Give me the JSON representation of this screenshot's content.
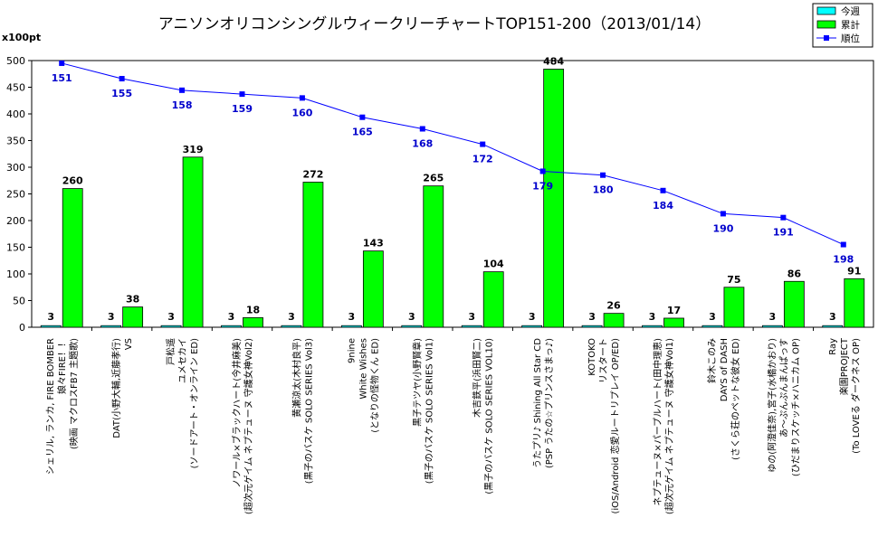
{
  "chart_data": {
    "type": "bar",
    "title": "アニソンオリコンシングルウィークリーチャートTOP151-200（2013/01/14）",
    "ylabel": "x100pt",
    "ylim": [
      0,
      500
    ],
    "yticks": [
      0,
      50,
      100,
      150,
      200,
      250,
      300,
      350,
      400,
      450,
      500
    ],
    "grid": false,
    "legend_position": "top-right",
    "categories": [
      [
        "シェリル, ランカ, FIRE BOMBER",
        "娘々FIRE！！",
        "(映画 マクロスFB7 主題歌)"
      ],
      [
        "DAT(小野大輔,近藤孝行)",
        "VS"
      ],
      [
        "戸松遥",
        "ユメセカイ",
        "(ソードアート・オンライン ED)"
      ],
      [
        "ノワール×ブラックハート(今井麻美)",
        "(超次元ゲイム ネプテューヌ 守護女神Vol2)"
      ],
      [
        "黄瀬涼太(木村良平)",
        "(黒子のバスケ SOLO SERIES Vol3)"
      ],
      [
        "9nine",
        "White Wishes",
        "(となりの怪物くん ED)"
      ],
      [
        "黒子テツヤ(小野賢章)",
        "(黒子のバスケ SOLO SERIES Vol1)"
      ],
      [
        "木吉鉄平(浜田賢二)",
        "(黒子のバスケ SOLO SERIES VOL10)"
      ],
      [
        "うたプリ♪ Shining All Star CD",
        "(PSP うたの☆プリンスさまっ♪)"
      ],
      [
        "KOTOKO",
        "リスタート",
        "(iOS/Android 恋愛ルートリプレイ OP/ED)"
      ],
      [
        "ネプテューヌ×パープルハート(田中理恵)",
        "(超次元ゲイム ネプテューヌ 守護女神Vol1)"
      ],
      [
        "鈴木このみ",
        "DAYS of DASH",
        "(さくら荘のペットな彼女 ED)"
      ],
      [
        "ゆの(阿澄佳奈),宮子(水橋かおり)",
        "あ〜ぷんぷんまんぱっす",
        "(ひだまりスケッチ×ハニカム OP)"
      ],
      [
        "Ray",
        "楽園PROJECT",
        "(To LOVEる ダークネス OP)"
      ]
    ],
    "series": [
      {
        "name": "今週",
        "type": "bar",
        "color": "#00ffff",
        "values": [
          3,
          3,
          3,
          3,
          3,
          3,
          3,
          3,
          3,
          3,
          3,
          3,
          3,
          3
        ]
      },
      {
        "name": "累計",
        "type": "bar",
        "color": "#00ff00",
        "values": [
          260,
          38,
          319,
          18,
          272,
          143,
          265,
          104,
          484,
          26,
          17,
          75,
          86,
          91
        ]
      },
      {
        "name": "順位",
        "type": "line",
        "color": "#0000ff",
        "values": [
          151,
          155,
          158,
          159,
          160,
          165,
          168,
          172,
          179,
          180,
          184,
          190,
          191,
          198
        ]
      }
    ]
  }
}
